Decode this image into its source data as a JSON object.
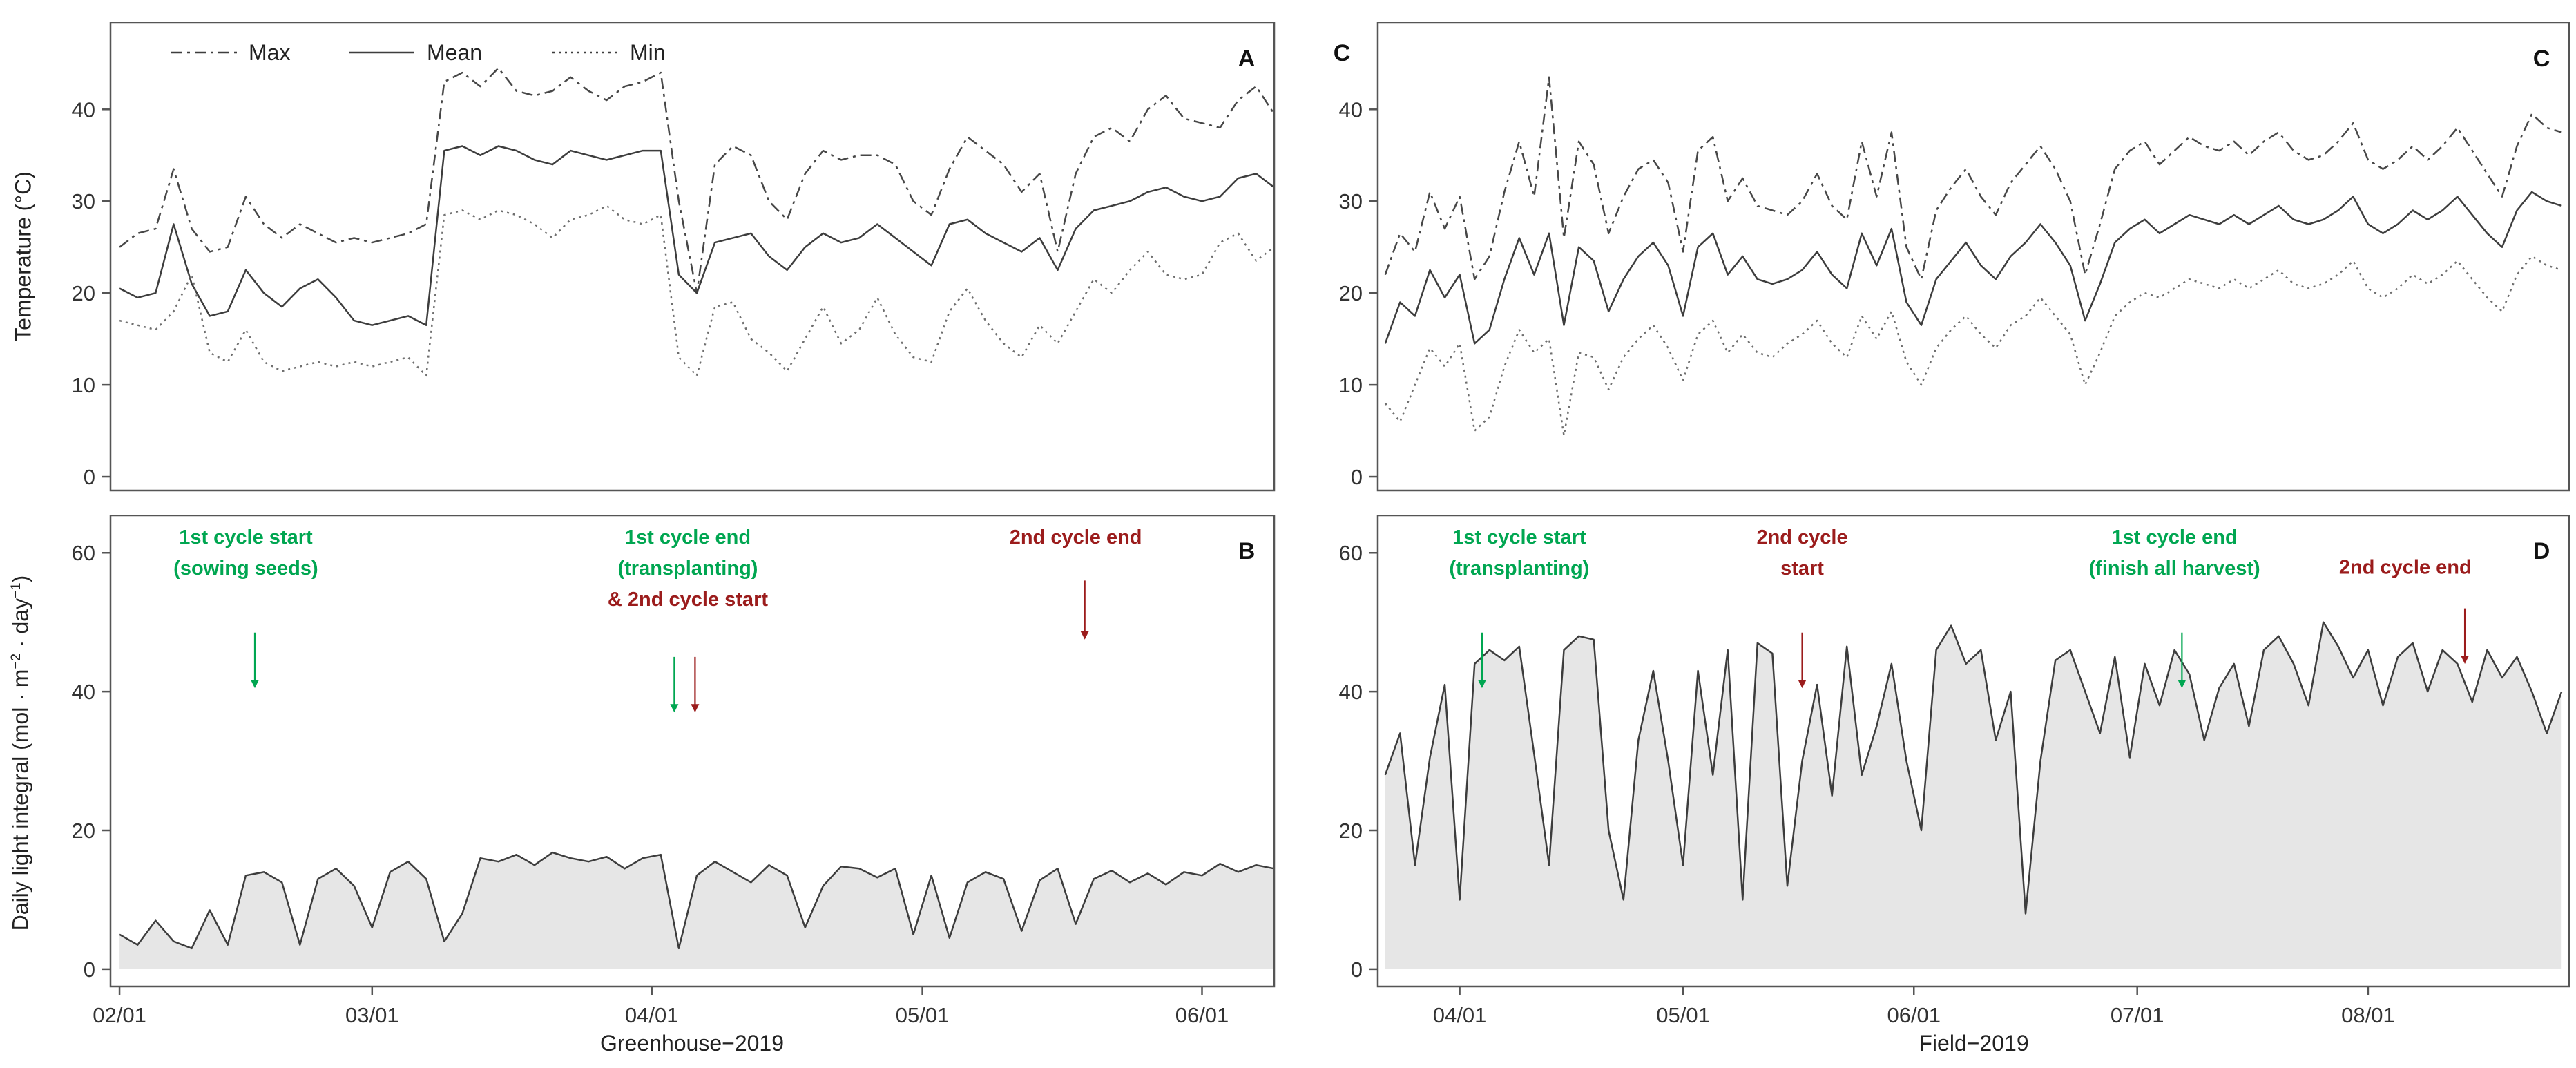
{
  "colors": {
    "green": "#00a651",
    "red": "#9b1c1c",
    "line_max": "#474747",
    "line_mean": "#3d3d3d",
    "line_min": "#6e6e6e",
    "area_fill": "#e6e6e6",
    "border": "#555555",
    "tick_text": "#333333"
  },
  "legend": {
    "items": [
      {
        "label": "Max",
        "dash": "dashdot"
      },
      {
        "label": "Mean",
        "dash": "solid"
      },
      {
        "label": "Min",
        "dash": "dotted"
      }
    ]
  },
  "axis": {
    "temperature_title": "Temperature (°C)",
    "dli_title_segments": [
      {
        "t": "Daily light integral (mol · m"
      },
      {
        "t": "−2",
        "sup": true
      },
      {
        "t": " · day"
      },
      {
        "t": "−1",
        "sup": true
      },
      {
        "t": ")"
      }
    ],
    "greenhouse_label": "Greenhouse−2019",
    "field_label": "Field−2019"
  },
  "chart_data": [
    {
      "id": "A",
      "type": "line",
      "corner_label": "A",
      "legend": true,
      "xlim": [
        -1,
        128
      ],
      "ylim": [
        -1.5,
        49.5
      ],
      "yticks": [
        0,
        10,
        20,
        30,
        40
      ],
      "xticks": {
        "values": [
          0,
          28,
          59,
          89,
          120
        ],
        "labels": [
          "02/01",
          "03/01",
          "04/01",
          "05/01",
          "06/01"
        ],
        "show_labels": false
      },
      "x_start": 0,
      "x_step": 2,
      "series": [
        {
          "name": "Max",
          "dash": "dashdot",
          "color": "line_max",
          "values": [
            25,
            26.5,
            27,
            33.5,
            27,
            24.5,
            25,
            30.5,
            27.5,
            26,
            27.5,
            26.5,
            25.5,
            26,
            25.5,
            26,
            26.5,
            27.5,
            43,
            44,
            42.5,
            44.5,
            42,
            41.5,
            42,
            43.5,
            42,
            41,
            42.5,
            43,
            44,
            30,
            20,
            34,
            36,
            35,
            30,
            28,
            33,
            35.5,
            34.5,
            35,
            35,
            34,
            30,
            28.5,
            33.5,
            37,
            35.5,
            34,
            31,
            33,
            24.5,
            33,
            37,
            38,
            36.5,
            40,
            41.5,
            39,
            38.5,
            38,
            41,
            42.5,
            39.5
          ]
        },
        {
          "name": "Mean",
          "dash": "solid",
          "color": "line_mean",
          "values": [
            20.5,
            19.5,
            20,
            27.5,
            21,
            17.5,
            18,
            22.5,
            20,
            18.5,
            20.5,
            21.5,
            19.5,
            17,
            16.5,
            17,
            17.5,
            16.5,
            35.5,
            36,
            35,
            36,
            35.5,
            34.5,
            34,
            35.5,
            35,
            34.5,
            35,
            35.5,
            35.5,
            22,
            20,
            25.5,
            26,
            26.5,
            24,
            22.5,
            25,
            26.5,
            25.5,
            26,
            27.5,
            26,
            24.5,
            23,
            27.5,
            28,
            26.5,
            25.5,
            24.5,
            26,
            22.5,
            27,
            29,
            29.5,
            30,
            31,
            31.5,
            30.5,
            30,
            30.5,
            32.5,
            33,
            31.5
          ]
        },
        {
          "name": "Min",
          "dash": "dotted",
          "color": "line_min",
          "values": [
            17,
            16.5,
            16,
            18,
            22,
            13.5,
            12.5,
            16,
            12.5,
            11.5,
            12,
            12.5,
            12,
            12.5,
            12,
            12.5,
            13,
            11,
            28.5,
            29,
            28,
            29,
            28.5,
            27.5,
            26,
            28,
            28.5,
            29.5,
            28,
            27.5,
            28.5,
            13,
            11,
            18.5,
            19,
            15,
            13.5,
            11.5,
            15,
            18.5,
            14.5,
            16,
            19.5,
            15.5,
            13,
            12.5,
            18,
            20.5,
            17,
            14.5,
            13,
            16.5,
            14.5,
            18,
            21.5,
            20,
            22.5,
            24.5,
            22,
            21.5,
            22,
            25.5,
            26.5,
            23.5,
            25
          ]
        }
      ]
    },
    {
      "id": "B",
      "type": "area",
      "corner_label": "B",
      "legend": false,
      "xlim": [
        -1,
        128
      ],
      "ylim": [
        -2.5,
        65.5
      ],
      "yticks": [
        0,
        20,
        40,
        60
      ],
      "xticks": {
        "values": [
          0,
          28,
          59,
          89,
          120
        ],
        "labels": [
          "02/01",
          "03/01",
          "04/01",
          "05/01",
          "06/01"
        ],
        "show_labels": true
      },
      "x_start": 0,
      "x_step": 2,
      "series": [
        {
          "name": "Daily light integral",
          "dash": "solid",
          "color": "line_mean",
          "area": true,
          "values": [
            5,
            3.5,
            7,
            4,
            3,
            8.5,
            3.5,
            13.5,
            14,
            12.5,
            3.5,
            13,
            14.5,
            12,
            6,
            14,
            15.5,
            13,
            4,
            8,
            16,
            15.5,
            16.5,
            15,
            16.8,
            16,
            15.5,
            16.2,
            14.5,
            16,
            16.5,
            3,
            13.5,
            15.5,
            14,
            12.5,
            15,
            13.5,
            6,
            12,
            14.8,
            14.5,
            13.2,
            14.5,
            5,
            13.5,
            4.5,
            12.5,
            14,
            13,
            5.5,
            12.8,
            14.5,
            6.5,
            13,
            14.2,
            12.5,
            13.8,
            12.2,
            14,
            13.5,
            15.2,
            14,
            15,
            14.5
          ]
        }
      ],
      "annotations": [
        {
          "x": 14,
          "y": 61.3,
          "lines": [
            {
              "text": "1st cycle start",
              "color": "green"
            },
            {
              "text": "(sowing seeds)",
              "color": "green"
            }
          ],
          "arrows": [
            {
              "x": 15,
              "y1": 48.5,
              "y2": 40.5,
              "color": "green"
            }
          ]
        },
        {
          "x": 63,
          "y": 61.3,
          "lines": [
            {
              "text": "1st cycle end",
              "color": "green"
            },
            {
              "text": "(transplanting)",
              "color": "green"
            },
            {
              "text": "& 2nd cycle start",
              "color": "red"
            }
          ],
          "arrows": [
            {
              "x": 61.5,
              "y1": 45,
              "y2": 37,
              "color": "green"
            },
            {
              "x": 63.8,
              "y1": 45,
              "y2": 37,
              "color": "red"
            }
          ]
        },
        {
          "x": 106,
          "y": 61.3,
          "lines": [
            {
              "text": "2nd cycle end",
              "color": "red"
            }
          ],
          "arrows": [
            {
              "x": 107,
              "y1": 56,
              "y2": 47.5,
              "color": "red"
            }
          ]
        }
      ]
    },
    {
      "id": "C",
      "type": "line",
      "corner_label": "C",
      "corner_extra": "C",
      "legend": false,
      "xlim": [
        -11,
        149
      ],
      "ylim": [
        -1.5,
        49.5
      ],
      "yticks": [
        0,
        10,
        20,
        30,
        40
      ],
      "xticks": {
        "values": [
          0,
          30,
          61,
          91,
          122
        ],
        "labels": [
          "04/01",
          "05/01",
          "06/01",
          "07/01",
          "08/01"
        ],
        "show_labels": false
      },
      "x_start": -10,
      "x_step": 2,
      "series": [
        {
          "name": "Max",
          "dash": "dashdot",
          "color": "line_max",
          "values": [
            22,
            26.5,
            24.5,
            31,
            27,
            30.5,
            21.5,
            24,
            31,
            36.5,
            30.5,
            43.5,
            26,
            36.5,
            34,
            26.5,
            30.5,
            33.5,
            34.5,
            32,
            24.5,
            35.5,
            37,
            30,
            32.5,
            29.5,
            29,
            28.5,
            30,
            33,
            29.5,
            28,
            36.5,
            30.5,
            37.5,
            25,
            21.5,
            29,
            31.5,
            33.5,
            30.5,
            28.5,
            32,
            34,
            36,
            33.5,
            30,
            22,
            27.5,
            33.5,
            35.5,
            36.5,
            34,
            35.5,
            37,
            36,
            35.5,
            36.5,
            35,
            36.5,
            37.5,
            35.5,
            34.5,
            35,
            36.5,
            38.5,
            34.5,
            33.5,
            34.5,
            36,
            34.5,
            36,
            38,
            35.5,
            33,
            30.5,
            36,
            39.5,
            38,
            37.5
          ]
        },
        {
          "name": "Mean",
          "dash": "solid",
          "color": "line_mean",
          "values": [
            14.5,
            19,
            17.5,
            22.5,
            19.5,
            22,
            14.5,
            16,
            21.5,
            26,
            22,
            26.5,
            16.5,
            25,
            23.5,
            18,
            21.5,
            24,
            25.5,
            23,
            17.5,
            25,
            26.5,
            22,
            24,
            21.5,
            21,
            21.5,
            22.5,
            24.5,
            22,
            20.5,
            26.5,
            23,
            27,
            19,
            16.5,
            21.5,
            23.5,
            25.5,
            23,
            21.5,
            24,
            25.5,
            27.5,
            25.5,
            23,
            17,
            21,
            25.5,
            27,
            28,
            26.5,
            27.5,
            28.5,
            28,
            27.5,
            28.5,
            27.5,
            28.5,
            29.5,
            28,
            27.5,
            28,
            29,
            30.5,
            27.5,
            26.5,
            27.5,
            29,
            28,
            29,
            30.5,
            28.5,
            26.5,
            25,
            29,
            31,
            30,
            29.5
          ]
        },
        {
          "name": "Min",
          "dash": "dotted",
          "color": "line_min",
          "values": [
            8,
            6,
            10,
            14,
            12,
            14.5,
            5,
            6.5,
            12,
            16,
            13.5,
            15,
            4.5,
            13.5,
            13,
            9.5,
            13,
            15,
            16.5,
            14,
            10.5,
            15.5,
            17,
            13.5,
            15.5,
            13.5,
            13,
            14.5,
            15.5,
            17,
            14.5,
            13,
            17.5,
            15,
            18,
            12.5,
            10,
            14,
            16,
            17.5,
            15.5,
            14,
            16.5,
            17.5,
            19.5,
            17.5,
            15.5,
            10,
            13.5,
            17.5,
            19,
            20,
            19.5,
            20.5,
            21.5,
            21,
            20.5,
            21.5,
            20.5,
            21.5,
            22.5,
            21,
            20.5,
            21,
            22,
            23.5,
            20.5,
            19.5,
            20.5,
            22,
            21,
            22,
            23.5,
            21.5,
            19.5,
            18,
            22,
            24,
            23,
            22.5
          ]
        }
      ]
    },
    {
      "id": "D",
      "type": "area",
      "corner_label": "D",
      "legend": false,
      "xlim": [
        -11,
        149
      ],
      "ylim": [
        -2.5,
        65.5
      ],
      "yticks": [
        0,
        20,
        40,
        60
      ],
      "xticks": {
        "values": [
          0,
          30,
          61,
          91,
          122
        ],
        "labels": [
          "04/01",
          "05/01",
          "06/01",
          "07/01",
          "08/01"
        ],
        "show_labels": true
      },
      "x_start": -10,
      "x_step": 2,
      "series": [
        {
          "name": "Daily light integral",
          "dash": "solid",
          "color": "line_mean",
          "area": true,
          "values": [
            28,
            34,
            15,
            30.5,
            41,
            10,
            44,
            46,
            44.5,
            46.5,
            31,
            15,
            46,
            48,
            47.5,
            20,
            10,
            33,
            43,
            30,
            15,
            43,
            28,
            46,
            10,
            47,
            45.5,
            12,
            30,
            41,
            25,
            46.5,
            28,
            35,
            44,
            30,
            20,
            46,
            49.5,
            44,
            46,
            33,
            40,
            8,
            30,
            44.5,
            46,
            40,
            34,
            45,
            30.5,
            44,
            38,
            46,
            42.5,
            33,
            40.5,
            44,
            35,
            46,
            48,
            44,
            38,
            50,
            46.5,
            42,
            46,
            38,
            45,
            47,
            40,
            46,
            44,
            38.5,
            46,
            42,
            45,
            40,
            34,
            40
          ]
        }
      ],
      "annotations": [
        {
          "x": 8,
          "y": 61.3,
          "lines": [
            {
              "text": "1st cycle start",
              "color": "green"
            },
            {
              "text": "(transplanting)",
              "color": "green"
            }
          ],
          "arrows": [
            {
              "x": 3,
              "y1": 48.5,
              "y2": 40.5,
              "color": "green"
            }
          ]
        },
        {
          "x": 46,
          "y": 61.3,
          "lines": [
            {
              "text": "2nd cycle",
              "color": "red"
            },
            {
              "text": "start",
              "color": "red"
            }
          ],
          "arrows": [
            {
              "x": 46,
              "y1": 48.5,
              "y2": 40.5,
              "color": "red"
            }
          ]
        },
        {
          "x": 96,
          "y": 61.3,
          "lines": [
            {
              "text": "1st cycle end",
              "color": "green"
            },
            {
              "text": "(finish all harvest)",
              "color": "green"
            }
          ],
          "arrows": [
            {
              "x": 97,
              "y1": 48.5,
              "y2": 40.5,
              "color": "green"
            }
          ]
        },
        {
          "x": 127,
          "y": 57.0,
          "lines": [
            {
              "text": "2nd cycle end",
              "color": "red"
            }
          ],
          "arrows": [
            {
              "x": 135,
              "y1": 52,
              "y2": 44,
              "color": "red"
            }
          ]
        }
      ]
    }
  ]
}
